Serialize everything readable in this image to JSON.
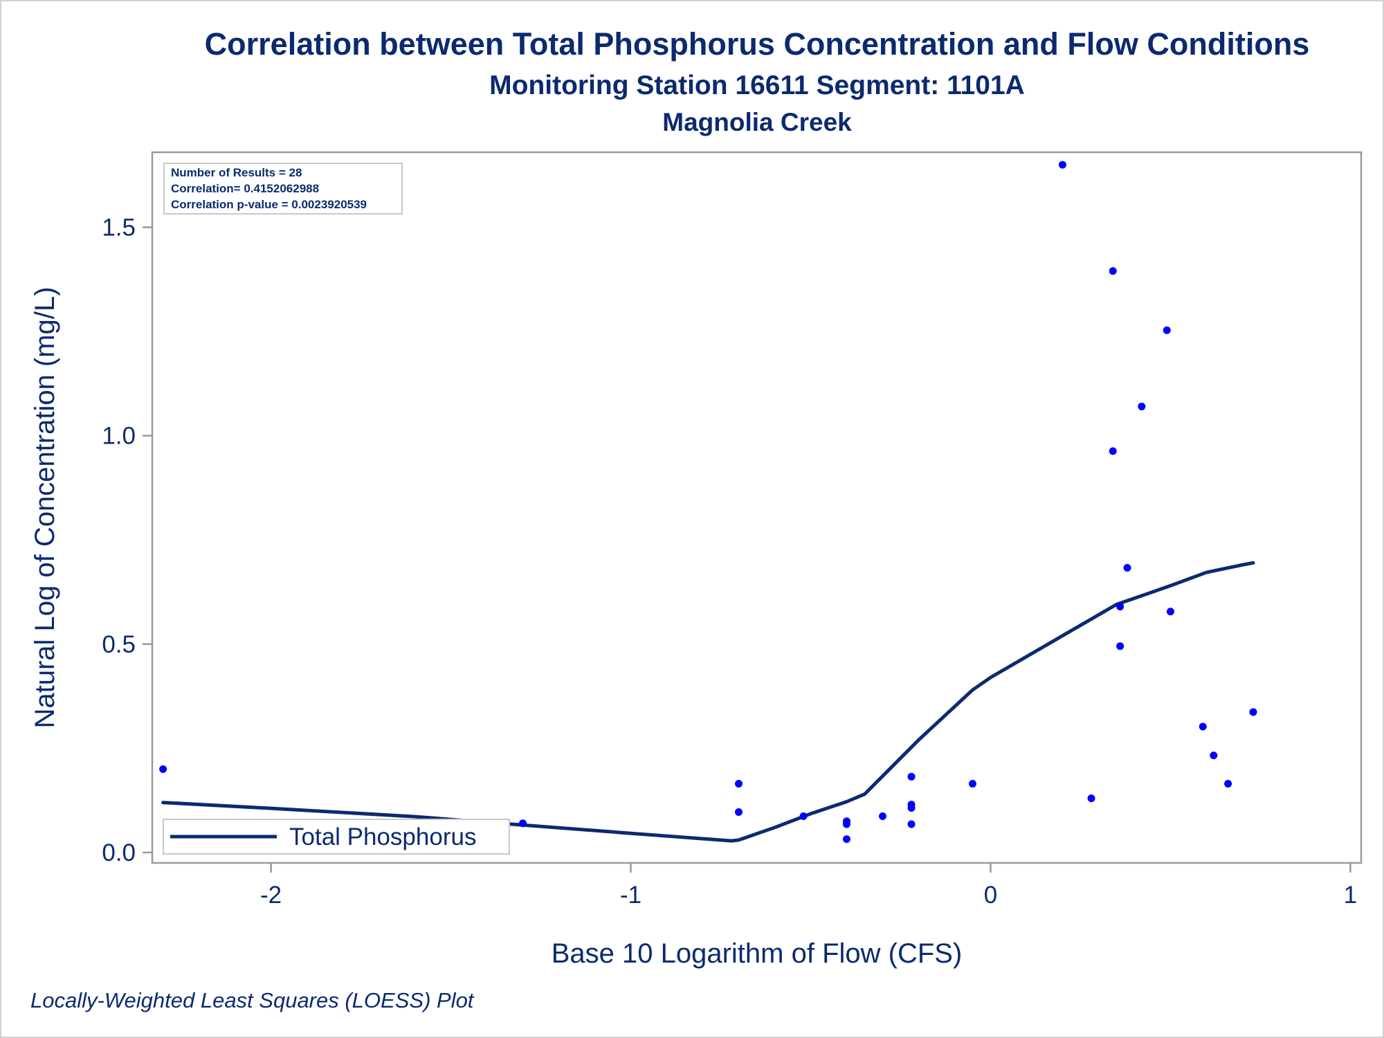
{
  "title": "Correlation between Total Phosphorus Concentration and Flow Conditions",
  "subtitle": "Monitoring Station 16611 Segment: 1101A",
  "subtitle2": "Magnolia Creek",
  "footnote": "Locally-Weighted Least Squares (LOESS) Plot",
  "stats": {
    "line1": "Number of Results = 28",
    "line2": "Correlation= 0.4152062988",
    "line3": "Correlation p-value = 0.0023920539"
  },
  "colors": {
    "text": "#0b2a6f",
    "points": "#0000ff",
    "line": "#0b2a6f",
    "axis": "#999999"
  },
  "chart_data": {
    "type": "scatter",
    "xlabel": "Base 10 Logarithm of Flow (CFS)",
    "ylabel": "Natural Log of Concentration (mg/L)",
    "xlim": [
      -2.33,
      1.03
    ],
    "ylim": [
      -0.025,
      1.68
    ],
    "xticks": [
      -2,
      -1,
      0,
      1
    ],
    "xtick_labels": [
      "-2",
      "-1",
      "0",
      "1"
    ],
    "yticks": [
      0.0,
      0.5,
      1.0,
      1.5
    ],
    "ytick_labels": [
      "0.0",
      "0.5",
      "1.0",
      "1.5"
    ],
    "grid": false,
    "legend_position": "bottom-left",
    "points": [
      {
        "x": -2.3,
        "y": 0.2
      },
      {
        "x": -1.3,
        "y": 0.07
      },
      {
        "x": -0.7,
        "y": 0.165
      },
      {
        "x": -0.7,
        "y": 0.097
      },
      {
        "x": -0.52,
        "y": 0.087
      },
      {
        "x": -0.4,
        "y": 0.075
      },
      {
        "x": -0.4,
        "y": 0.068
      },
      {
        "x": -0.4,
        "y": 0.032
      },
      {
        "x": -0.3,
        "y": 0.087
      },
      {
        "x": -0.22,
        "y": 0.182
      },
      {
        "x": -0.22,
        "y": 0.115
      },
      {
        "x": -0.22,
        "y": 0.107
      },
      {
        "x": -0.22,
        "y": 0.068
      },
      {
        "x": -0.05,
        "y": 0.165
      },
      {
        "x": 0.2,
        "y": 1.65
      },
      {
        "x": 0.28,
        "y": 0.13
      },
      {
        "x": 0.34,
        "y": 1.395
      },
      {
        "x": 0.34,
        "y": 0.963
      },
      {
        "x": 0.36,
        "y": 0.59
      },
      {
        "x": 0.36,
        "y": 0.495
      },
      {
        "x": 0.38,
        "y": 0.683
      },
      {
        "x": 0.42,
        "y": 1.07
      },
      {
        "x": 0.49,
        "y": 1.253
      },
      {
        "x": 0.5,
        "y": 0.578
      },
      {
        "x": 0.59,
        "y": 0.302
      },
      {
        "x": 0.62,
        "y": 0.233
      },
      {
        "x": 0.66,
        "y": 0.165
      },
      {
        "x": 0.73,
        "y": 0.337
      }
    ],
    "series": [
      {
        "name": "Total Phosphorus",
        "x": [
          -2.3,
          -2.0,
          -1.6,
          -1.3,
          -1.0,
          -0.72,
          -0.7,
          -0.6,
          -0.5,
          -0.4,
          -0.35,
          -0.2,
          -0.05,
          0.0,
          0.1,
          0.2,
          0.3,
          0.35,
          0.4,
          0.5,
          0.6,
          0.7,
          0.73
        ],
        "y": [
          0.12,
          0.106,
          0.086,
          0.066,
          0.046,
          0.028,
          0.03,
          0.06,
          0.093,
          0.122,
          0.14,
          0.27,
          0.39,
          0.42,
          0.47,
          0.52,
          0.57,
          0.595,
          0.61,
          0.64,
          0.672,
          0.69,
          0.695
        ]
      }
    ]
  }
}
